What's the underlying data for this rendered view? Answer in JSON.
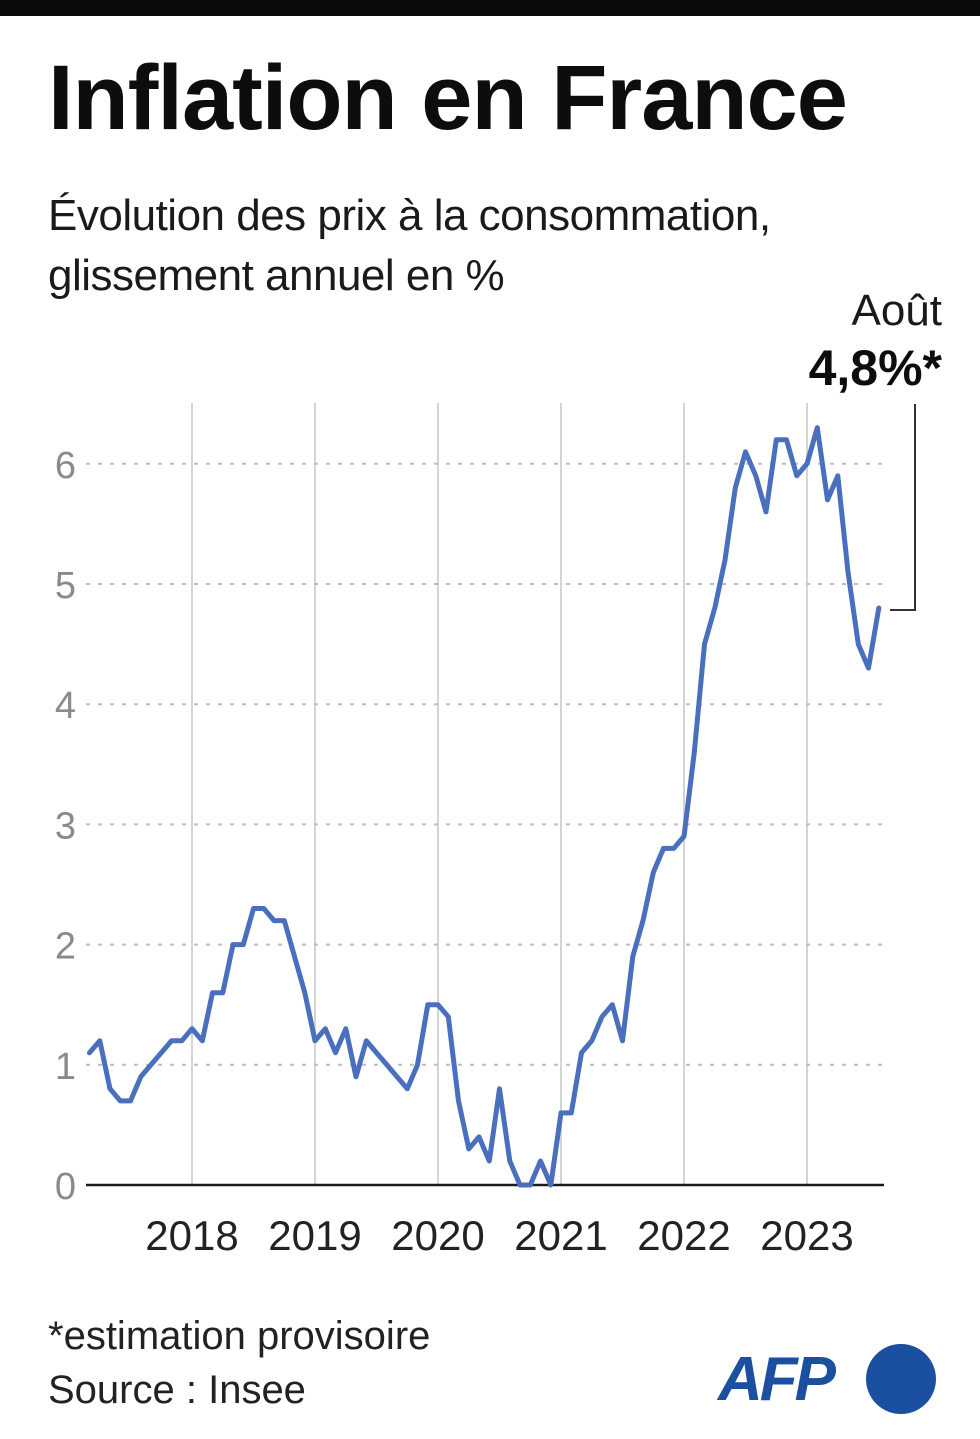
{
  "header": {
    "title": "Inflation en France",
    "subtitle_line1": "Évolution des prix à la consommation,",
    "subtitle_line2": "glissement annuel en %"
  },
  "annotation": {
    "month": "Août",
    "value": "4,8%*"
  },
  "footer": {
    "footnote": "*estimation provisoire",
    "source": "Source : Insee",
    "logo_text": "AFP"
  },
  "colors": {
    "line": "#4a6fbe",
    "brand": "#1b4fa0",
    "grid": "#bdbdbd",
    "axis": "#1a1a1a",
    "top_bar": "#0a0a0a"
  },
  "chart_data": {
    "type": "line",
    "title": "Inflation en France",
    "subtitle": "Évolution des prix à la consommation, glissement annuel en %",
    "xlabel": "",
    "ylabel": "glissement annuel en %",
    "ylim": [
      0,
      6.5
    ],
    "yticks": [
      0,
      1,
      2,
      3,
      4,
      5,
      6
    ],
    "xtick_labels": [
      "2018",
      "2019",
      "2020",
      "2021",
      "2022",
      "2023"
    ],
    "grid": {
      "horizontal": "dotted",
      "vertical": "at year starts"
    },
    "legend": null,
    "start": "2017-03",
    "end": "2023-08",
    "x": [
      "2017-03",
      "2017-04",
      "2017-05",
      "2017-06",
      "2017-07",
      "2017-08",
      "2017-09",
      "2017-10",
      "2017-11",
      "2017-12",
      "2018-01",
      "2018-02",
      "2018-03",
      "2018-04",
      "2018-05",
      "2018-06",
      "2018-07",
      "2018-08",
      "2018-09",
      "2018-10",
      "2018-11",
      "2018-12",
      "2019-01",
      "2019-02",
      "2019-03",
      "2019-04",
      "2019-05",
      "2019-06",
      "2019-07",
      "2019-08",
      "2019-09",
      "2019-10",
      "2019-11",
      "2019-12",
      "2020-01",
      "2020-02",
      "2020-03",
      "2020-04",
      "2020-05",
      "2020-06",
      "2020-07",
      "2020-08",
      "2020-09",
      "2020-10",
      "2020-11",
      "2020-12",
      "2021-01",
      "2021-02",
      "2021-03",
      "2021-04",
      "2021-05",
      "2021-06",
      "2021-07",
      "2021-08",
      "2021-09",
      "2021-10",
      "2021-11",
      "2021-12",
      "2022-01",
      "2022-02",
      "2022-03",
      "2022-04",
      "2022-05",
      "2022-06",
      "2022-07",
      "2022-08",
      "2022-09",
      "2022-10",
      "2022-11",
      "2022-12",
      "2023-01",
      "2023-02",
      "2023-03",
      "2023-04",
      "2023-05",
      "2023-06",
      "2023-07",
      "2023-08"
    ],
    "series": [
      {
        "name": "Inflation (glissement annuel, %)",
        "values": [
          1.1,
          1.2,
          0.8,
          0.7,
          0.7,
          0.9,
          1.0,
          1.1,
          1.2,
          1.2,
          1.3,
          1.2,
          1.6,
          1.6,
          2.0,
          2.0,
          2.3,
          2.3,
          2.2,
          2.2,
          1.9,
          1.6,
          1.2,
          1.3,
          1.1,
          1.3,
          0.9,
          1.2,
          1.1,
          1.0,
          0.9,
          0.8,
          1.0,
          1.5,
          1.5,
          1.4,
          0.7,
          0.3,
          0.4,
          0.2,
          0.8,
          0.2,
          0.0,
          0.0,
          0.2,
          0.0,
          0.6,
          0.6,
          1.1,
          1.2,
          1.4,
          1.5,
          1.2,
          1.9,
          2.2,
          2.6,
          2.8,
          2.8,
          2.9,
          3.6,
          4.5,
          4.8,
          5.2,
          5.8,
          6.1,
          5.9,
          5.6,
          6.2,
          6.2,
          5.9,
          6.0,
          6.3,
          5.7,
          5.9,
          5.1,
          4.5,
          4.3,
          4.8
        ]
      }
    ],
    "annotations": [
      {
        "x": "2023-08",
        "label": "Août 4,8%*",
        "note": "*estimation provisoire"
      }
    ],
    "source": "Source : Insee"
  }
}
